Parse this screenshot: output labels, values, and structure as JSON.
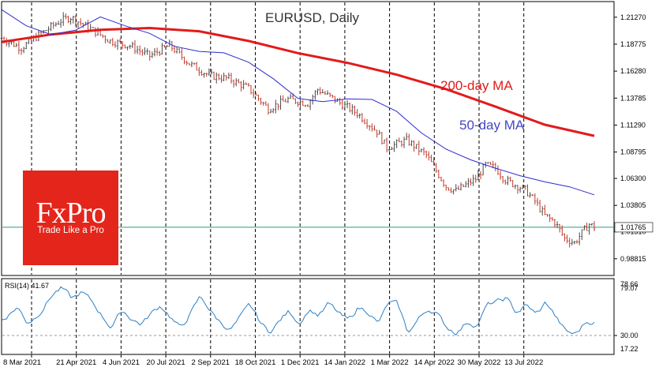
{
  "logo": {
    "name": "FxPro",
    "tagline": "Trade Like a Pro"
  },
  "chart_data": {
    "type": "line",
    "title": "EURUSD, Daily",
    "colors": {
      "price_up": "#4a4a4a",
      "price_down": "#c0392b",
      "ma200": "#e21b1b",
      "ma50": "#2c2cd0",
      "rsi": "#2f7fc4",
      "current_line": "#2a9a8a",
      "logo": "#e4251b"
    },
    "x_tick_labels": [
      "8 Mar 2021",
      "21 Apr 2021",
      "4 Jun 2021",
      "20 Jul 2021",
      "2 Sep 2021",
      "18 Oct 2021",
      "1 Dec 2021",
      "14 Jan 2022",
      "1 Mar 2022",
      "14 Apr 2022",
      "30 May 2022",
      "13 Jul 2022"
    ],
    "price_axis": {
      "ylim": [
        0.973,
        1.227
      ],
      "tick_values": [
        0.9885,
        1.0135,
        1.038,
        1.063,
        1.0875,
        1.1125,
        1.1375,
        1.1625,
        1.1875,
        1.2125
      ],
      "tick_labels": [
        "0.98815",
        "1.01310",
        "1.03805",
        "1.06300",
        "1.08795",
        "1.11290",
        "1.13785",
        "1.16280",
        "1.18775",
        "1.21270"
      ],
      "current_value": 1.0177,
      "current_label": "1.01765"
    },
    "series": [
      {
        "name": "200-day MA",
        "x": [
          0,
          10,
          20,
          30,
          40,
          50,
          60,
          70,
          80,
          90,
          100,
          110,
          120
        ],
        "values": [
          1.1895,
          1.1965,
          1.2008,
          1.2025,
          1.1995,
          1.1905,
          1.1792,
          1.1702,
          1.1592,
          1.1458,
          1.1296,
          1.1128,
          1.1025
        ]
      },
      {
        "name": "50-day MA",
        "x": [
          0,
          5,
          10,
          15,
          20,
          25,
          30,
          35,
          40,
          45,
          50,
          55,
          60,
          65,
          70,
          75,
          80,
          85,
          90,
          95,
          100,
          105,
          110,
          115,
          120
        ],
        "values": [
          1.2195,
          1.2045,
          1.1965,
          1.2005,
          1.2128,
          1.2045,
          1.1975,
          1.1855,
          1.1808,
          1.1795,
          1.1708,
          1.1555,
          1.1372,
          1.1342,
          1.1368,
          1.1362,
          1.1252,
          1.1052,
          1.0902,
          1.0802,
          1.0725,
          1.0655,
          1.0598,
          1.0552,
          1.0478
        ]
      },
      {
        "name": "EURUSD",
        "x": [
          0,
          4,
          8,
          12,
          14,
          18,
          22,
          26,
          30,
          34,
          38,
          42,
          46,
          50,
          54,
          58,
          62,
          64,
          68,
          72,
          76,
          78,
          82,
          86,
          90,
          92,
          96,
          98,
          100,
          102,
          106,
          108,
          110,
          112,
          114,
          116,
          118,
          119,
          120
        ],
        "values": [
          1.193,
          1.184,
          1.1975,
          1.2095,
          1.2125,
          1.2018,
          1.1905,
          1.186,
          1.1765,
          1.1865,
          1.1695,
          1.1585,
          1.1555,
          1.1465,
          1.1275,
          1.1365,
          1.1325,
          1.1455,
          1.1345,
          1.1235,
          1.1065,
          1.0915,
          1.0985,
          1.0845,
          1.0555,
          1.0515,
          1.0625,
          1.0755,
          1.0725,
          1.0615,
          1.0525,
          1.0418,
          1.0285,
          1.0225,
          1.0075,
          1.0033,
          1.0155,
          1.0205,
          1.0177
        ]
      }
    ],
    "annotations": [
      "200-day MA",
      "50-day MA"
    ],
    "rsi": {
      "label": "RSI(14) 41.67",
      "ylim": [
        12,
        84
      ],
      "tick_values": [
        17.22,
        30.0,
        78.66,
        79.07
      ],
      "tick_labels": [
        "17.22",
        "30.00",
        "78.66",
        "79.07"
      ],
      "x": [
        0,
        3,
        5,
        8,
        10,
        12,
        14,
        16,
        18,
        20,
        22,
        24,
        26,
        28,
        30,
        32,
        34,
        36,
        38,
        40,
        42,
        44,
        46,
        48,
        50,
        52,
        54,
        56,
        58,
        60,
        62,
        64,
        66,
        68,
        70,
        72,
        74,
        76,
        78,
        80,
        82,
        84,
        86,
        88,
        90,
        92,
        94,
        96,
        98,
        100,
        102,
        104,
        106,
        108,
        110,
        112,
        114,
        116,
        118,
        120
      ],
      "values": [
        45,
        58,
        40,
        55,
        70,
        76,
        64,
        72,
        62,
        48,
        36,
        56,
        45,
        40,
        52,
        59,
        46,
        36,
        52,
        69,
        52,
        42,
        34,
        48,
        61,
        42,
        32,
        45,
        54,
        40,
        56,
        48,
        62,
        50,
        44,
        58,
        52,
        40,
        63,
        60,
        30,
        46,
        56,
        50,
        36,
        32,
        44,
        38,
        61,
        62,
        66,
        50,
        60,
        49,
        63,
        46,
        33,
        31,
        44,
        42
      ]
    }
  }
}
